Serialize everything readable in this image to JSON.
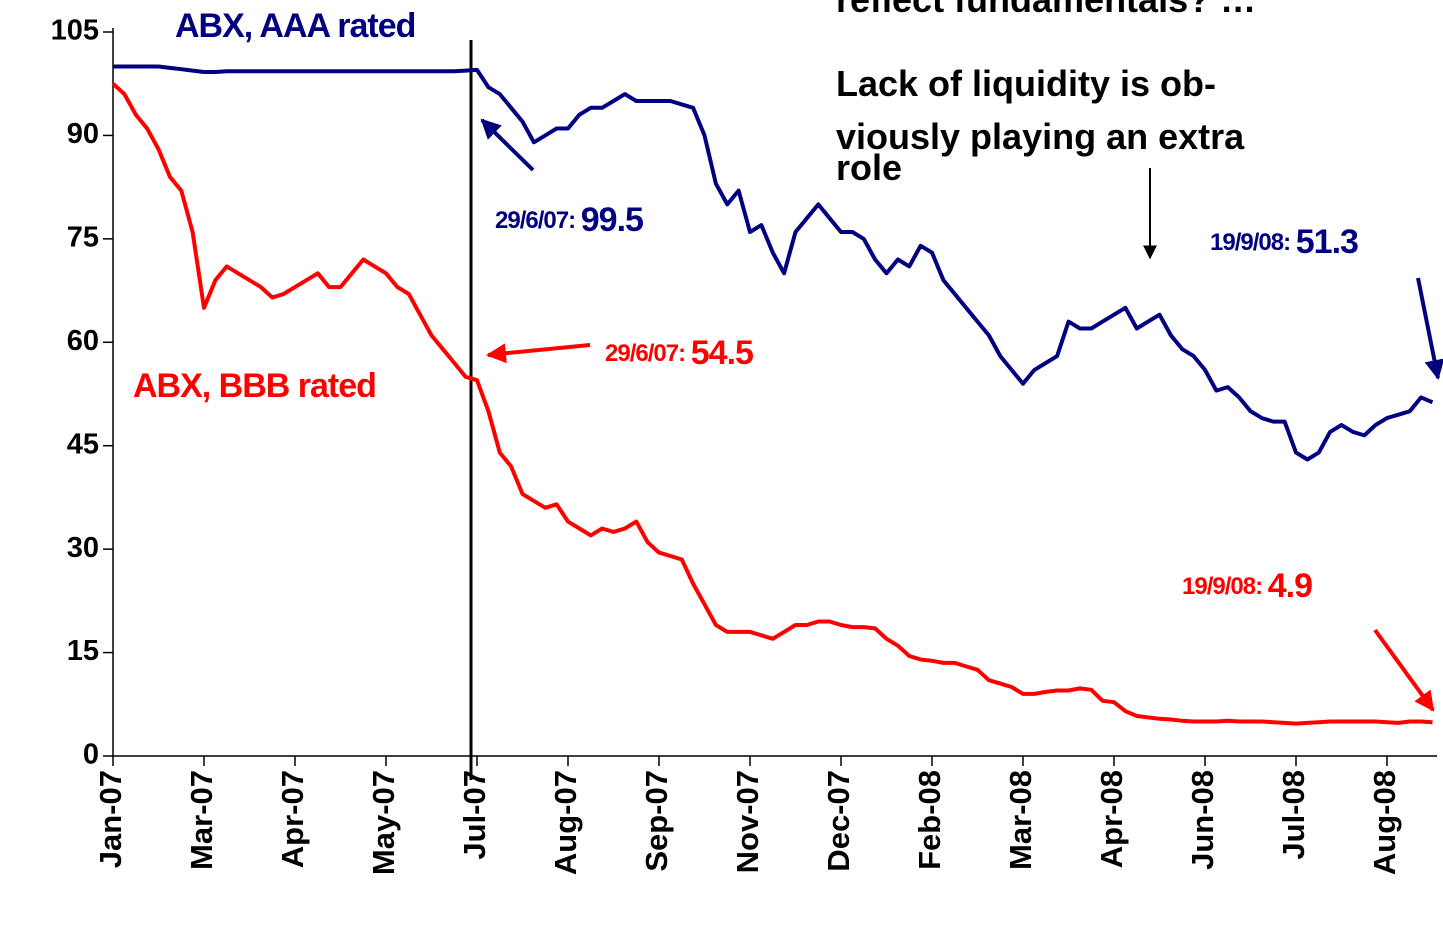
{
  "chart_data": {
    "type": "line",
    "categories": [
      "Jan-07",
      null,
      null,
      null,
      null,
      null,
      null,
      null,
      "Mar-07",
      null,
      null,
      null,
      null,
      null,
      null,
      null,
      "Apr-07",
      null,
      null,
      null,
      null,
      null,
      null,
      null,
      "May-07",
      null,
      null,
      null,
      null,
      null,
      null,
      null,
      "Jul-07",
      null,
      null,
      null,
      null,
      null,
      null,
      null,
      "Aug-07",
      null,
      null,
      null,
      null,
      null,
      null,
      null,
      "Sep-07",
      null,
      null,
      null,
      null,
      null,
      null,
      null,
      "Nov-07",
      null,
      null,
      null,
      null,
      null,
      null,
      null,
      "Dec-07",
      null,
      null,
      null,
      null,
      null,
      null,
      null,
      "Feb-08",
      null,
      null,
      null,
      null,
      null,
      null,
      null,
      "Mar-08",
      null,
      null,
      null,
      null,
      null,
      null,
      null,
      "Apr-08",
      null,
      null,
      null,
      null,
      null,
      null,
      null,
      "Jun-08",
      null,
      null,
      null,
      null,
      null,
      null,
      null,
      "Jul-08",
      null,
      null,
      null,
      null,
      null,
      null,
      null,
      "Aug-08",
      null,
      null,
      null,
      null
    ],
    "series": [
      {
        "name": "ABX, AAA rated",
        "color": "#000080",
        "values": [
          100,
          100,
          100,
          100,
          100,
          99.8,
          99.6,
          99.4,
          99.2,
          99.2,
          99.3,
          99.3,
          99.3,
          99.3,
          99.3,
          99.3,
          99.3,
          99.3,
          99.3,
          99.3,
          99.3,
          99.3,
          99.3,
          99.3,
          99.3,
          99.3,
          99.3,
          99.3,
          99.3,
          99.3,
          99.3,
          99.4,
          99.5,
          97,
          96,
          94,
          92,
          89,
          90,
          91,
          91,
          93,
          94,
          94,
          95,
          96,
          95,
          95,
          95,
          95,
          94.5,
          94,
          90,
          83,
          80,
          82,
          76,
          77,
          73,
          70,
          76,
          78,
          80,
          78,
          76,
          76,
          75,
          72,
          70,
          72,
          71,
          74,
          73,
          69,
          67,
          65,
          63,
          61,
          58,
          56,
          54,
          56,
          57,
          58,
          63,
          62,
          62,
          63,
          64,
          65,
          62,
          63,
          64,
          61,
          59,
          58,
          56,
          53,
          53.5,
          52,
          50,
          49,
          48.5,
          48.5,
          44,
          43,
          44,
          47,
          48,
          47,
          46.5,
          48,
          49,
          49.5,
          50,
          52,
          51.3
        ]
      },
      {
        "name": "ABX, BBB rated",
        "color": "#ff0000",
        "values": [
          97.5,
          96,
          93,
          91,
          88,
          84,
          82,
          76,
          65,
          69,
          71,
          70,
          69,
          68,
          66.5,
          67,
          68,
          69,
          70,
          68,
          68,
          70,
          72,
          71,
          70,
          68,
          67,
          64,
          61,
          59,
          57,
          55,
          54.5,
          50,
          44,
          42,
          38,
          37,
          36,
          36.5,
          34,
          33,
          32,
          33,
          32.5,
          33,
          34,
          31,
          29.5,
          29,
          28.5,
          25,
          22,
          19,
          18,
          18,
          18,
          17.5,
          17,
          18,
          19,
          19,
          19.5,
          19.5,
          19,
          18.7,
          18.7,
          18.5,
          17,
          16,
          14.5,
          14,
          13.8,
          13.5,
          13.5,
          13,
          12.5,
          11,
          10.5,
          10,
          9,
          9,
          9.3,
          9.5,
          9.5,
          9.8,
          9.6,
          8,
          7.8,
          6.5,
          5.8,
          5.6,
          5.4,
          5.3,
          5.1,
          5,
          5,
          5,
          5.1,
          5,
          5,
          5,
          4.9,
          4.8,
          4.7,
          4.8,
          4.9,
          5,
          5,
          5,
          5,
          5,
          4.9,
          4.8,
          5,
          5,
          4.9
        ]
      }
    ],
    "ylim": [
      0,
      105
    ],
    "yticks": [
      0,
      15,
      30,
      45,
      60,
      75,
      90,
      105
    ],
    "annotations": [
      "29/6/07:",
      "29/6/07:",
      "19/9/08:",
      "19/9/08:"
    ],
    "note": [
      "reflect fundamentals? …",
      "Lack of liquidity is ob-",
      "viously playing an extra",
      "role"
    ]
  }
}
